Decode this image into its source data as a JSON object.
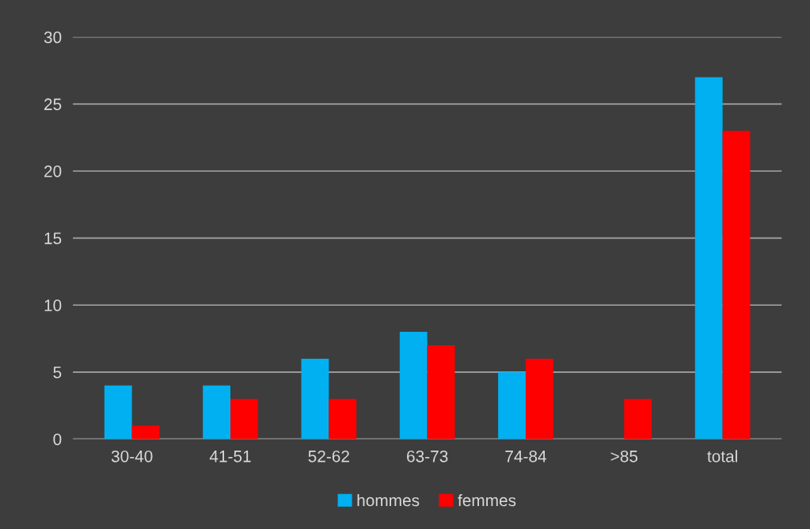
{
  "chart_data": {
    "type": "bar",
    "categories": [
      "30-40",
      "41-51",
      "52-62",
      "63-73",
      "74-84",
      ">85",
      "total"
    ],
    "series": [
      {
        "name": "hommes",
        "color": "#00b0f0",
        "values": [
          4,
          4,
          6,
          8,
          5,
          0,
          27
        ]
      },
      {
        "name": "femmes",
        "color": "#ff0000",
        "values": [
          1,
          3,
          3,
          7,
          6,
          3,
          23
        ]
      }
    ],
    "ylim": [
      0,
      30
    ],
    "yticks": [
      0,
      5,
      10,
      15,
      20,
      25,
      30
    ],
    "grid": "y",
    "legend": "bottom"
  }
}
